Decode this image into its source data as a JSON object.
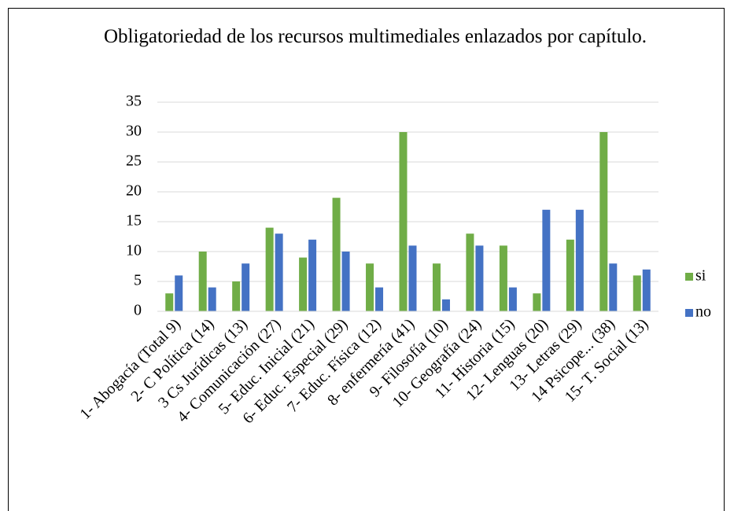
{
  "chart_data": {
    "type": "bar",
    "title": "Obligatoriedad de los recursos multimediales enlazados por capítulo.",
    "categories": [
      "1- Abogacía (Total 9)",
      "2- C Política (14)",
      "3 Cs Jurídicas (13)",
      "4- Comunicación (27)",
      "5- Educ. Inicial (21)",
      "6- Educ. Especial (29)",
      "7- Educ. Física (12)",
      "8- enfermería (41)",
      "9- Filosofía (10)",
      "10- Geografía (24)",
      "11- Historia (15)",
      "12- Lenguas (20)",
      "13- Letras (29)",
      "14 Psicope... (38)",
      "15- T. Social (13)"
    ],
    "series": [
      {
        "name": "si",
        "color": "#70ad47",
        "values": [
          3,
          10,
          5,
          14,
          9,
          19,
          8,
          30,
          8,
          13,
          11,
          3,
          12,
          30,
          6
        ]
      },
      {
        "name": "no",
        "color": "#4472c4",
        "values": [
          6,
          4,
          8,
          13,
          12,
          10,
          4,
          11,
          2,
          11,
          4,
          17,
          17,
          8,
          7
        ]
      }
    ],
    "ylim": [
      0,
      35
    ],
    "yticks": [
      0,
      5,
      10,
      15,
      20,
      25,
      30,
      35
    ],
    "grid": true,
    "legend": "right"
  }
}
